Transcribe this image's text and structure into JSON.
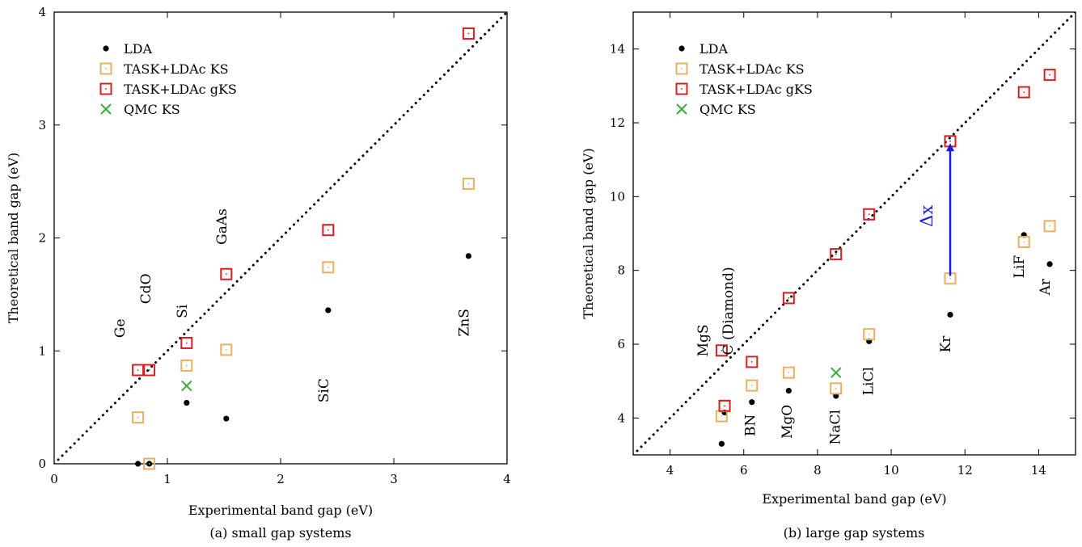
{
  "chart_data": [
    {
      "type": "scatter",
      "caption": "(a) small gap systems",
      "xlabel": "Experimental band gap (eV)",
      "ylabel": "Theoretical band gap (eV)",
      "xlim": [
        0,
        4
      ],
      "ylim": [
        0,
        4
      ],
      "xticks": [
        0,
        1,
        2,
        3,
        4
      ],
      "yticks": [
        0,
        1,
        2,
        3,
        4
      ],
      "diagonal": "y = x (dotted)",
      "legend_position": "top-left",
      "legend": [
        "LDA",
        "TASK+LDAc KS",
        "TASK+LDAc gKS",
        "QMC KS"
      ],
      "series": [
        {
          "name": "LDA",
          "marker": "dot",
          "color": "#000000",
          "points": [
            [
              0.74,
              0.0
            ],
            [
              0.84,
              0.0
            ],
            [
              1.17,
              0.54
            ],
            [
              1.52,
              0.4
            ],
            [
              2.42,
              1.36
            ],
            [
              3.66,
              1.84
            ]
          ]
        },
        {
          "name": "TASK+LDAc KS",
          "marker": "open-square",
          "color": "#e8b060",
          "points": [
            [
              0.74,
              0.41
            ],
            [
              0.84,
              0.0
            ],
            [
              1.17,
              0.87
            ],
            [
              1.52,
              1.01
            ],
            [
              2.42,
              1.74
            ],
            [
              3.66,
              2.48
            ]
          ]
        },
        {
          "name": "TASK+LDAc gKS",
          "marker": "open-square",
          "color": "#d42020",
          "points": [
            [
              0.74,
              0.83
            ],
            [
              0.84,
              0.83
            ],
            [
              1.17,
              1.07
            ],
            [
              1.52,
              1.68
            ],
            [
              2.42,
              2.07
            ],
            [
              3.66,
              3.81
            ]
          ]
        },
        {
          "name": "QMC KS",
          "marker": "cross",
          "color": "#3aaa3a",
          "points": [
            [
              1.17,
              0.69
            ]
          ]
        }
      ],
      "annotations": [
        {
          "text": "Ge",
          "x": 0.62,
          "y": 1.2,
          "rotate": true
        },
        {
          "text": "CdO",
          "x": 0.85,
          "y": 1.55,
          "rotate": true
        },
        {
          "text": "Si",
          "x": 1.17,
          "y": 1.35,
          "rotate": true
        },
        {
          "text": "GaAs",
          "x": 1.52,
          "y": 2.1,
          "rotate": true
        },
        {
          "text": "SiC",
          "x": 2.42,
          "y": 0.65,
          "rotate": true
        },
        {
          "text": "ZnS",
          "x": 3.66,
          "y": 1.25,
          "rotate": true
        }
      ]
    },
    {
      "type": "scatter",
      "caption": "(b) large gap systems",
      "xlabel": "Experimental band gap (eV)",
      "ylabel": "Theoretical band gap (eV)",
      "xlim": [
        3,
        15
      ],
      "ylim": [
        3,
        15
      ],
      "xticks": [
        4,
        6,
        8,
        10,
        12,
        14
      ],
      "yticks": [
        4,
        6,
        8,
        10,
        12,
        14
      ],
      "diagonal": "y = x (dotted)",
      "legend_position": "top-left",
      "legend": [
        "LDA",
        "TASK+LDAc KS",
        "TASK+LDAc gKS",
        "QMC KS"
      ],
      "series": [
        {
          "name": "LDA",
          "marker": "dot",
          "color": "#000000",
          "points": [
            [
              5.4,
              3.3
            ],
            [
              5.48,
              4.15
            ],
            [
              6.22,
              4.43
            ],
            [
              7.22,
              4.74
            ],
            [
              8.5,
              4.6
            ],
            [
              9.4,
              6.08
            ],
            [
              11.6,
              6.8
            ],
            [
              13.6,
              8.96
            ],
            [
              14.3,
              8.17
            ]
          ]
        },
        {
          "name": "TASK+LDAc KS",
          "marker": "open-square",
          "color": "#e8b060",
          "points": [
            [
              5.4,
              4.05
            ],
            [
              5.48,
              4.32
            ],
            [
              6.22,
              4.88
            ],
            [
              7.22,
              5.23
            ],
            [
              8.5,
              4.8
            ],
            [
              9.4,
              6.27
            ],
            [
              11.6,
              7.78
            ],
            [
              13.6,
              8.77
            ],
            [
              14.3,
              9.2
            ]
          ]
        },
        {
          "name": "TASK+LDAc gKS",
          "marker": "open-square",
          "color": "#d42020",
          "points": [
            [
              5.4,
              5.83
            ],
            [
              5.48,
              4.33
            ],
            [
              6.22,
              5.52
            ],
            [
              7.22,
              7.25
            ],
            [
              8.5,
              8.44
            ],
            [
              9.4,
              9.52
            ],
            [
              11.6,
              11.5
            ],
            [
              13.6,
              12.83
            ],
            [
              14.3,
              13.3
            ]
          ]
        },
        {
          "name": "QMC KS",
          "marker": "cross",
          "color": "#3aaa3a",
          "points": [
            [
              8.5,
              5.23
            ]
          ]
        }
      ],
      "annotations": [
        {
          "text": "MgS",
          "x": 5.02,
          "y": 6.1,
          "rotate": true
        },
        {
          "text": "C (Diamond)",
          "x": 5.7,
          "y": 6.9,
          "rotate": true
        },
        {
          "text": "BN",
          "x": 6.3,
          "y": 3.8,
          "rotate": true
        },
        {
          "text": "MgO",
          "x": 7.3,
          "y": 3.9,
          "rotate": true
        },
        {
          "text": "NaCl",
          "x": 8.6,
          "y": 3.75,
          "rotate": true
        },
        {
          "text": "LiCl",
          "x": 9.5,
          "y": 5.0,
          "rotate": true
        },
        {
          "text": "Kr",
          "x": 11.6,
          "y": 6.0,
          "rotate": true
        },
        {
          "text": "LiF",
          "x": 13.6,
          "y": 8.1,
          "rotate": true
        },
        {
          "text": "Ar",
          "x": 14.3,
          "y": 7.55,
          "rotate": true
        }
      ],
      "arrow": {
        "label": "Δx",
        "color": "#1a1adb",
        "from": [
          11.6,
          7.85
        ],
        "to": [
          11.6,
          11.45
        ]
      }
    }
  ]
}
